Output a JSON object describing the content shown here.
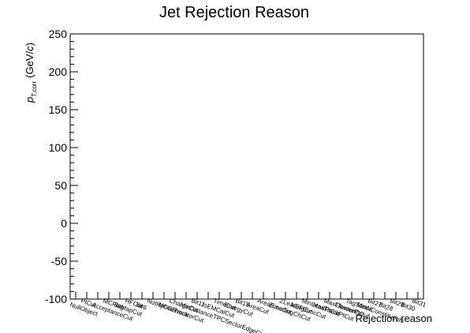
{
  "chart_data": {
    "type": "histogram",
    "title": "Jet Rejection Reason",
    "x_label": "Rejection reason",
    "y_label": {
      "symbol": "p",
      "subscript": "T,corr",
      "unit_open": "(GeV/",
      "unit_var": "c",
      "unit_close": ")"
    },
    "categories": [
      "NullObject",
      "PtCut",
      "AcceptanceCut",
      "MCFlag",
      "BitMapCut",
      "HFCut",
      "Bit6",
      "NotHybridTrack",
      "MCGeneratorCut",
      "ChargeCut",
      "MinDistanceTPCSectorEdgeCut",
      "Bit11",
      "IsEMCalCut",
      "TimeCut",
      "EnergyCut",
      "Bit15",
      "AreaCut",
      "AreaEmcCut",
      "ZLeadingChCut",
      "ZLeadingEmcCut",
      "NEFCut",
      "MinLeadPtCut",
      "MaxTrackPtCut",
      "MaxClusterPtCut",
      "FlavourCut",
      "TagStatus",
      "MinNConstituents",
      "Bit27",
      "Bit28",
      "Bit29",
      "Bit30",
      "Bit31"
    ],
    "ylim": [
      -100,
      250
    ],
    "yticks": [
      -100,
      -50,
      0,
      50,
      100,
      150,
      200,
      250
    ]
  }
}
